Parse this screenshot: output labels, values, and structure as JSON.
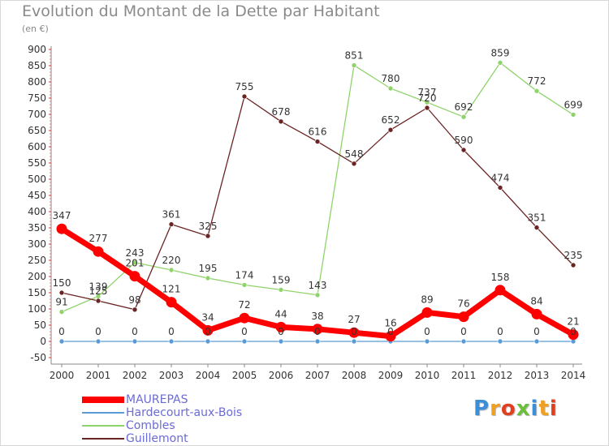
{
  "header": {
    "title": "Evolution du Montant de la Dette par Habitant",
    "subtitle": "(en €)"
  },
  "brand": {
    "text": "Proxiti",
    "letter_colors": [
      "#3a8fd8",
      "#f0a020",
      "#e04020",
      "#6bbf3a",
      "#3a8fd8",
      "#f0a020",
      "#e04020"
    ]
  },
  "chart_data": {
    "type": "line",
    "title": "Evolution du Montant de la Dette par Habitant",
    "subtitle": "(en €)",
    "xlabel": "",
    "ylabel": "",
    "categories": [
      "2000",
      "2001",
      "2002",
      "2003",
      "2004",
      "2005",
      "2006",
      "2007",
      "2008",
      "2009",
      "2010",
      "2011",
      "2012",
      "2013",
      "2014"
    ],
    "ylim": [
      -50,
      900
    ],
    "yticks": [
      -50,
      0,
      50,
      100,
      150,
      200,
      250,
      300,
      350,
      400,
      450,
      500,
      550,
      600,
      650,
      700,
      750,
      800,
      850,
      900
    ],
    "grid": false,
    "legend_position": "bottom-left",
    "series": [
      {
        "name": "MAUREPAS",
        "color": "#ff0000",
        "values": [
          347,
          277,
          201,
          121,
          34,
          72,
          44,
          38,
          27,
          16,
          89,
          76,
          158,
          84,
          21
        ]
      },
      {
        "name": "Hardecourt-aux-Bois",
        "color": "#5b9bd5",
        "values": [
          0,
          0,
          0,
          0,
          0,
          0,
          0,
          0,
          0,
          0,
          0,
          0,
          0,
          0,
          0
        ]
      },
      {
        "name": "Combles",
        "color": "#8fd36b",
        "values": [
          91,
          139,
          243,
          220,
          195,
          174,
          159,
          143,
          851,
          780,
          737,
          692,
          859,
          772,
          699
        ]
      },
      {
        "name": "Guillemont",
        "color": "#6b2424",
        "values": [
          150,
          125,
          98,
          361,
          325,
          755,
          678,
          616,
          548,
          652,
          720,
          590,
          474,
          351,
          235
        ]
      }
    ]
  }
}
